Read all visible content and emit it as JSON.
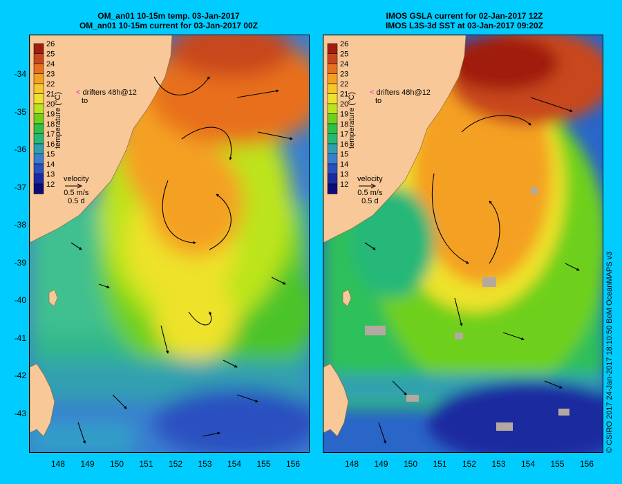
{
  "left_panel": {
    "title_line1": "OM_an01 10-15m temp. 03-Jan-2017",
    "title_line2": "OM_an01 10-15m current for 03-Jan-2017 00Z"
  },
  "right_panel": {
    "title_line1": "IMOS GSLA current for 02-Jan-2017 12Z",
    "title_line2": "IMOS L3S-3d SST at 03-Jan-2017 09:20Z"
  },
  "colorbar": {
    "label": "temperature (°C)",
    "ticks": [
      "26",
      "25",
      "24",
      "23",
      "22",
      "21",
      "20",
      "19",
      "18",
      "17",
      "16",
      "15",
      "14",
      "13",
      "12"
    ],
    "colors": [
      "#a01e10",
      "#c8461e",
      "#e8701e",
      "#f4a020",
      "#f8c828",
      "#eee22a",
      "#bce41e",
      "#6ed01e",
      "#2fc04a",
      "#26b878",
      "#30a0b0",
      "#3a7ed0",
      "#2a50c0",
      "#1a2aa0",
      "#0c0c78"
    ]
  },
  "legend": {
    "drifters_line1": "drifters 48h@12",
    "drifters_line2": "to",
    "velocity_label": "velocity",
    "velocity_scale": "0.5 m/s",
    "velocity_time": "0.5 d"
  },
  "axes": {
    "lat_labels": [
      "-34",
      "-35",
      "-36",
      "-37",
      "-38",
      "-39",
      "-40",
      "-41",
      "-42",
      "-43"
    ],
    "lon_labels": [
      "148",
      "149",
      "150",
      "151",
      "152",
      "153",
      "154",
      "155",
      "156"
    ]
  },
  "credit": "© CSIRO 2017    24-Jan-2017 18:10:50 BoM OceanMAPS v3",
  "colors": {
    "background": "#00ccff",
    "land": "#f8c898",
    "warm_core": "#e07a20",
    "tasman_cool": "#2a66c8"
  }
}
